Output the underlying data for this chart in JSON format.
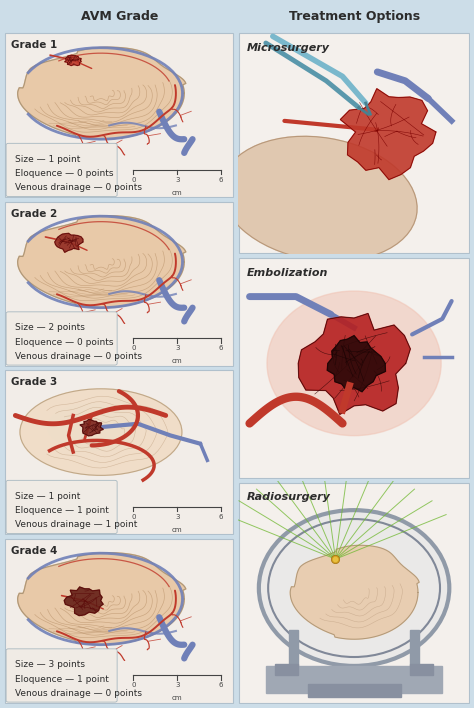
{
  "title_left": "AVM Grade",
  "title_right": "Treatment Options",
  "bg_color": "#ccdde8",
  "panel_bg": "#ffffff",
  "header_bg": "#ccdde8",
  "grades": [
    "Grade 1",
    "Grade 2",
    "Grade 3",
    "Grade 4"
  ],
  "grade_texts": [
    [
      "Size — 1 point",
      "Eloquence — 0 points",
      "Venous drainage — 0 points"
    ],
    [
      "Size — 2 points",
      "Eloquence — 0 points",
      "Venous drainage — 0 points"
    ],
    [
      "Size — 1 point",
      "Eloquence — 1 point",
      "Venous drainage — 1 point"
    ],
    [
      "Size — 3 points",
      "Eloquence — 1 point",
      "Venous drainage — 0 points"
    ]
  ],
  "treatments": [
    "Microsurgery",
    "Embolization",
    "Radiosurgery"
  ],
  "brain_fill": "#e8c9a8",
  "brain_shade": "#d4a882",
  "brain_outline": "#b09878",
  "gyri_color": "#c8a882",
  "sulci_color": "#b89068",
  "artery_color": "#c0392b",
  "artery_color2": "#9b1a1a",
  "vein_color": "#7080b8",
  "vein_color2": "#5060a0",
  "avm_colors": [
    "#c0392b",
    "#922b21",
    "#7b241c",
    "#641e16"
  ],
  "avm_dark": "#4a0a0a",
  "text_color": "#2c2c2c",
  "label_fontsize": 6.5,
  "grade_fontsize": 7.5,
  "title_fontsize": 9,
  "panel_edge": "#b0c0cc",
  "scalebar_color": "#444444"
}
